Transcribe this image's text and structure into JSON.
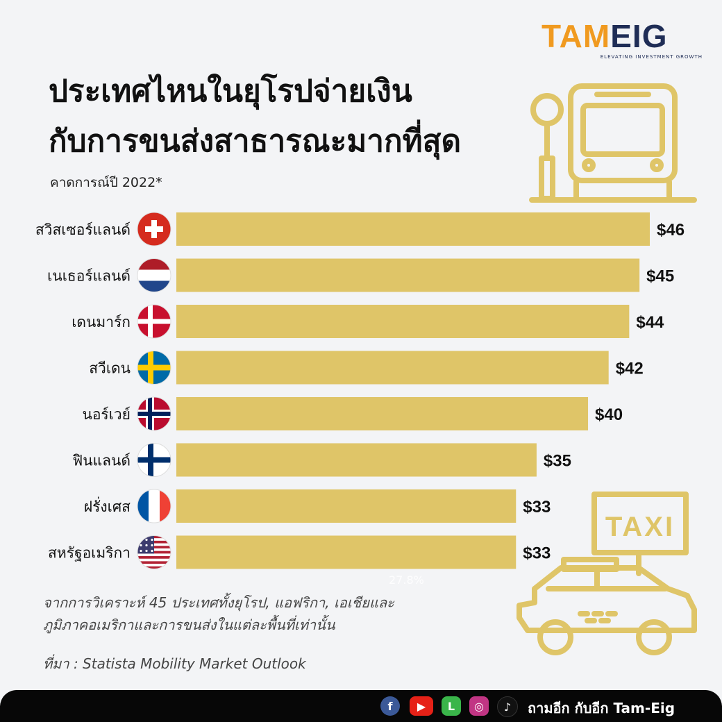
{
  "logo": {
    "tam": "TAM",
    "eig": "EIG",
    "tagline": "ELEVATING INVESTMENT GROWTH"
  },
  "title_line1": "ประเทศไหนในยุโรปจ่ายเงิน",
  "title_line2": "กับการขนส่งสาธารณะมากที่สุด",
  "subtitle": "คาดการณ์ปี 2022*",
  "chart_data": {
    "type": "bar",
    "orientation": "horizontal",
    "categories": [
      "สวิสเซอร์แลนด์",
      "เนเธอร์แลนด์",
      "เดนมาร์ก",
      "สวีเดน",
      "นอร์เวย์",
      "ฟินแลนด์",
      "ฝรั่งเศส",
      "สหรัฐอเมริกา"
    ],
    "values": [
      46,
      45,
      44,
      42,
      40,
      35,
      33,
      33
    ],
    "value_labels": [
      "$46",
      "$45",
      "$44",
      "$42",
      "$40",
      "$35",
      "$33",
      "$33"
    ],
    "flags": [
      "flag-switzerland-icon",
      "flag-netherlands-icon",
      "flag-denmark-icon",
      "flag-sweden-icon",
      "flag-norway-icon",
      "flag-finland-icon",
      "flag-france-icon",
      "flag-usa-icon"
    ],
    "bar_color": "#dfc568",
    "xlim": [
      0,
      46
    ],
    "grid": false,
    "legend": "none"
  },
  "ghost_label": "27.8%",
  "notes": {
    "line1": "จากการวิเคราะห์ 45 ประเทศทั้งยุโรป, แอฟริกา, เอเชียและ",
    "line2": "ภูมิภาคอเมริกาและการขนส่งในแต่ละพื้นที่เท่านั้น"
  },
  "source": "ที่มา : Statista Mobility Market Outlook",
  "footer": {
    "text": "ถามอีก กับอีก Tam-Eig",
    "icons": [
      "facebook-icon",
      "youtube-icon",
      "line-icon",
      "instagram-icon",
      "tiktok-icon"
    ]
  },
  "decor_color": "#dfc568",
  "taxi_sign": "TAXI"
}
